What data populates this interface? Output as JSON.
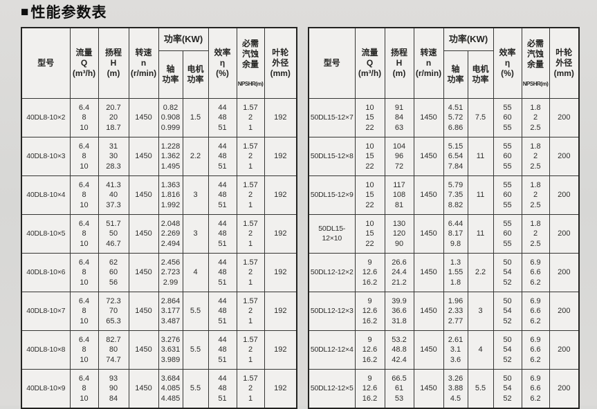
{
  "page": {
    "title_marker": "■",
    "title": "性能参数表"
  },
  "header": {
    "model": "型号",
    "flow": "流量\nQ\n(m³/h)",
    "head": "扬程\nH\n(m)",
    "speed": "转速\nn\n(r/min)",
    "power_group": "功率(KW)",
    "shaft_power": "轴\n功率",
    "motor_power": "电机\n功率",
    "efficiency": "效率\nη\n(%)",
    "npshr": "必需\n汽蚀\n余量",
    "npshr_sub": "NPSHR(m)",
    "impeller": "叶轮\n外径\n(mm)"
  },
  "tables": [
    {
      "rows": [
        {
          "model": "40DL8-10×2",
          "q": "6.4\n8\n10",
          "h": "20.7\n20\n18.7",
          "n": "1450",
          "shaft": "0.82\n0.908\n0.999",
          "motor": "1.5",
          "eff": "44\n48\n51",
          "npshr": "1.57\n2\n1",
          "dia": "192"
        },
        {
          "model": "40DL8-10×3",
          "q": "6.4\n8\n10",
          "h": "31\n30\n28.3",
          "n": "1450",
          "shaft": "1.228\n1.362\n1.495",
          "motor": "2.2",
          "eff": "44\n48\n51",
          "npshr": "1.57\n2\n1",
          "dia": "192"
        },
        {
          "model": "40DL8-10×4",
          "q": "6.4\n8\n10",
          "h": "41.3\n40\n37.3",
          "n": "1450",
          "shaft": "1.363\n1.816\n1.992",
          "motor": "3",
          "eff": "44\n48\n51",
          "npshr": "1.57\n2\n1",
          "dia": "192"
        },
        {
          "model": "40DL8-10×5",
          "q": "6.4\n8\n10",
          "h": "51.7\n50\n46.7",
          "n": "1450",
          "shaft": "2.048\n2.269\n2.494",
          "motor": "3",
          "eff": "44\n48\n51",
          "npshr": "1.57\n2\n1",
          "dia": "192"
        },
        {
          "model": "40DL8-10×6",
          "q": "6.4\n8\n10",
          "h": "62\n60\n56",
          "n": "1450",
          "shaft": "2.456\n2.723\n2.99",
          "motor": "4",
          "eff": "44\n48\n51",
          "npshr": "1.57\n2\n1",
          "dia": "192"
        },
        {
          "model": "40DL8-10×7",
          "q": "6.4\n8\n10",
          "h": "72.3\n70\n65.3",
          "n": "1450",
          "shaft": "2.864\n3.177\n3.487",
          "motor": "5.5",
          "eff": "44\n48\n51",
          "npshr": "1.57\n2\n1",
          "dia": "192"
        },
        {
          "model": "40DL8-10×8",
          "q": "6.4\n8\n10",
          "h": "82.7\n80\n74.7",
          "n": "1450",
          "shaft": "3.276\n3.631\n3.989",
          "motor": "5.5",
          "eff": "44\n48\n51",
          "npshr": "1.57\n2\n1",
          "dia": "192"
        },
        {
          "model": "40DL8-10×9",
          "q": "6.4\n8\n10",
          "h": "93\n90\n84",
          "n": "1450",
          "shaft": "3.684\n4.085\n4.485",
          "motor": "5.5",
          "eff": "44\n48\n51",
          "npshr": "1.57\n2\n1",
          "dia": "192"
        }
      ]
    },
    {
      "rows": [
        {
          "model": "50DL15-12×7",
          "q": "10\n15\n22",
          "h": "91\n84\n63",
          "n": "1450",
          "shaft": "4.51\n5.72\n6.86",
          "motor": "7.5",
          "eff": "55\n60\n55",
          "npshr": "1.8\n2\n2.5",
          "dia": "200"
        },
        {
          "model": "50DL15-12×8",
          "q": "10\n15\n22",
          "h": "104\n96\n72",
          "n": "1450",
          "shaft": "5.15\n6.54\n7.84",
          "motor": "11",
          "eff": "55\n60\n55",
          "npshr": "1.8\n2\n2.5",
          "dia": "200"
        },
        {
          "model": "50DL15-12×9",
          "q": "10\n15\n22",
          "h": "117\n108\n81",
          "n": "1450",
          "shaft": "5.79\n7.35\n8.82",
          "motor": "11",
          "eff": "55\n60\n55",
          "npshr": "1.8\n2\n2.5",
          "dia": "200"
        },
        {
          "model": "50DL15-12×10",
          "q": "10\n15\n22",
          "h": "130\n120\n90",
          "n": "1450",
          "shaft": "6.44\n8.17\n9.8",
          "motor": "11",
          "eff": "55\n60\n55",
          "npshr": "1.8\n2\n2.5",
          "dia": "200"
        },
        {
          "model": "50DL12-12×2",
          "q": "9\n12.6\n16.2",
          "h": "26.6\n24.4\n21.2",
          "n": "1450",
          "shaft": "1.3\n1.55\n1.8",
          "motor": "2.2",
          "eff": "50\n54\n52",
          "npshr": "6.9\n6.6\n6.2",
          "dia": "200"
        },
        {
          "model": "50DL12-12×3",
          "q": "9\n12.6\n16.2",
          "h": "39.9\n36.6\n31.8",
          "n": "1450",
          "shaft": "1.96\n2.33\n2.77",
          "motor": "3",
          "eff": "50\n54\n52",
          "npshr": "6.9\n6.6\n6.2",
          "dia": "200"
        },
        {
          "model": "50DL12-12×4",
          "q": "9\n12.6\n16.2",
          "h": "53.2\n48.8\n42.4",
          "n": "1450",
          "shaft": "2.61\n3.1\n3.6",
          "motor": "4",
          "eff": "50\n54\n52",
          "npshr": "6.9\n6.6\n6.2",
          "dia": "200"
        },
        {
          "model": "50DL12-12×5",
          "q": "9\n12.6\n16.2",
          "h": "66.5\n61\n53",
          "n": "1450",
          "shaft": "3.26\n3.88\n4.5",
          "motor": "5.5",
          "eff": "50\n54\n52",
          "npshr": "6.9\n6.6\n6.2",
          "dia": "200"
        }
      ]
    }
  ]
}
